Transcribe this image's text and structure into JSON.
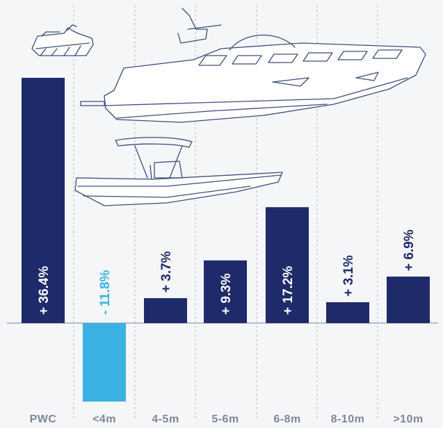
{
  "chart_data": {
    "type": "bar",
    "categories": [
      "PWC",
      "<4m",
      "4-5m",
      "5-6m",
      "6-8m",
      "8-10m",
      ">10m"
    ],
    "values": [
      36.4,
      -11.8,
      3.7,
      9.3,
      17.2,
      3.1,
      6.9
    ],
    "value_labels": [
      "+ 36.4%",
      "- 11.8%",
      "+ 3.7%",
      "+ 9.3%",
      "+ 17.2%",
      "+ 3.1%",
      "+ 6.9%"
    ],
    "ylim": [
      -11.8,
      36.4
    ],
    "grid": "vertical dotted separators",
    "colors": {
      "positive": "#1e2a6a",
      "negative": "#3ab3e4",
      "baseline": "#b9bcc4",
      "grid": "#c7cad1",
      "tick_text": "#7f8797",
      "label_inside": "#ffffff"
    }
  },
  "illustrations": [
    {
      "name": "jet-ski-icon"
    },
    {
      "name": "yacht-icon"
    },
    {
      "name": "rib-boat-icon"
    }
  ]
}
